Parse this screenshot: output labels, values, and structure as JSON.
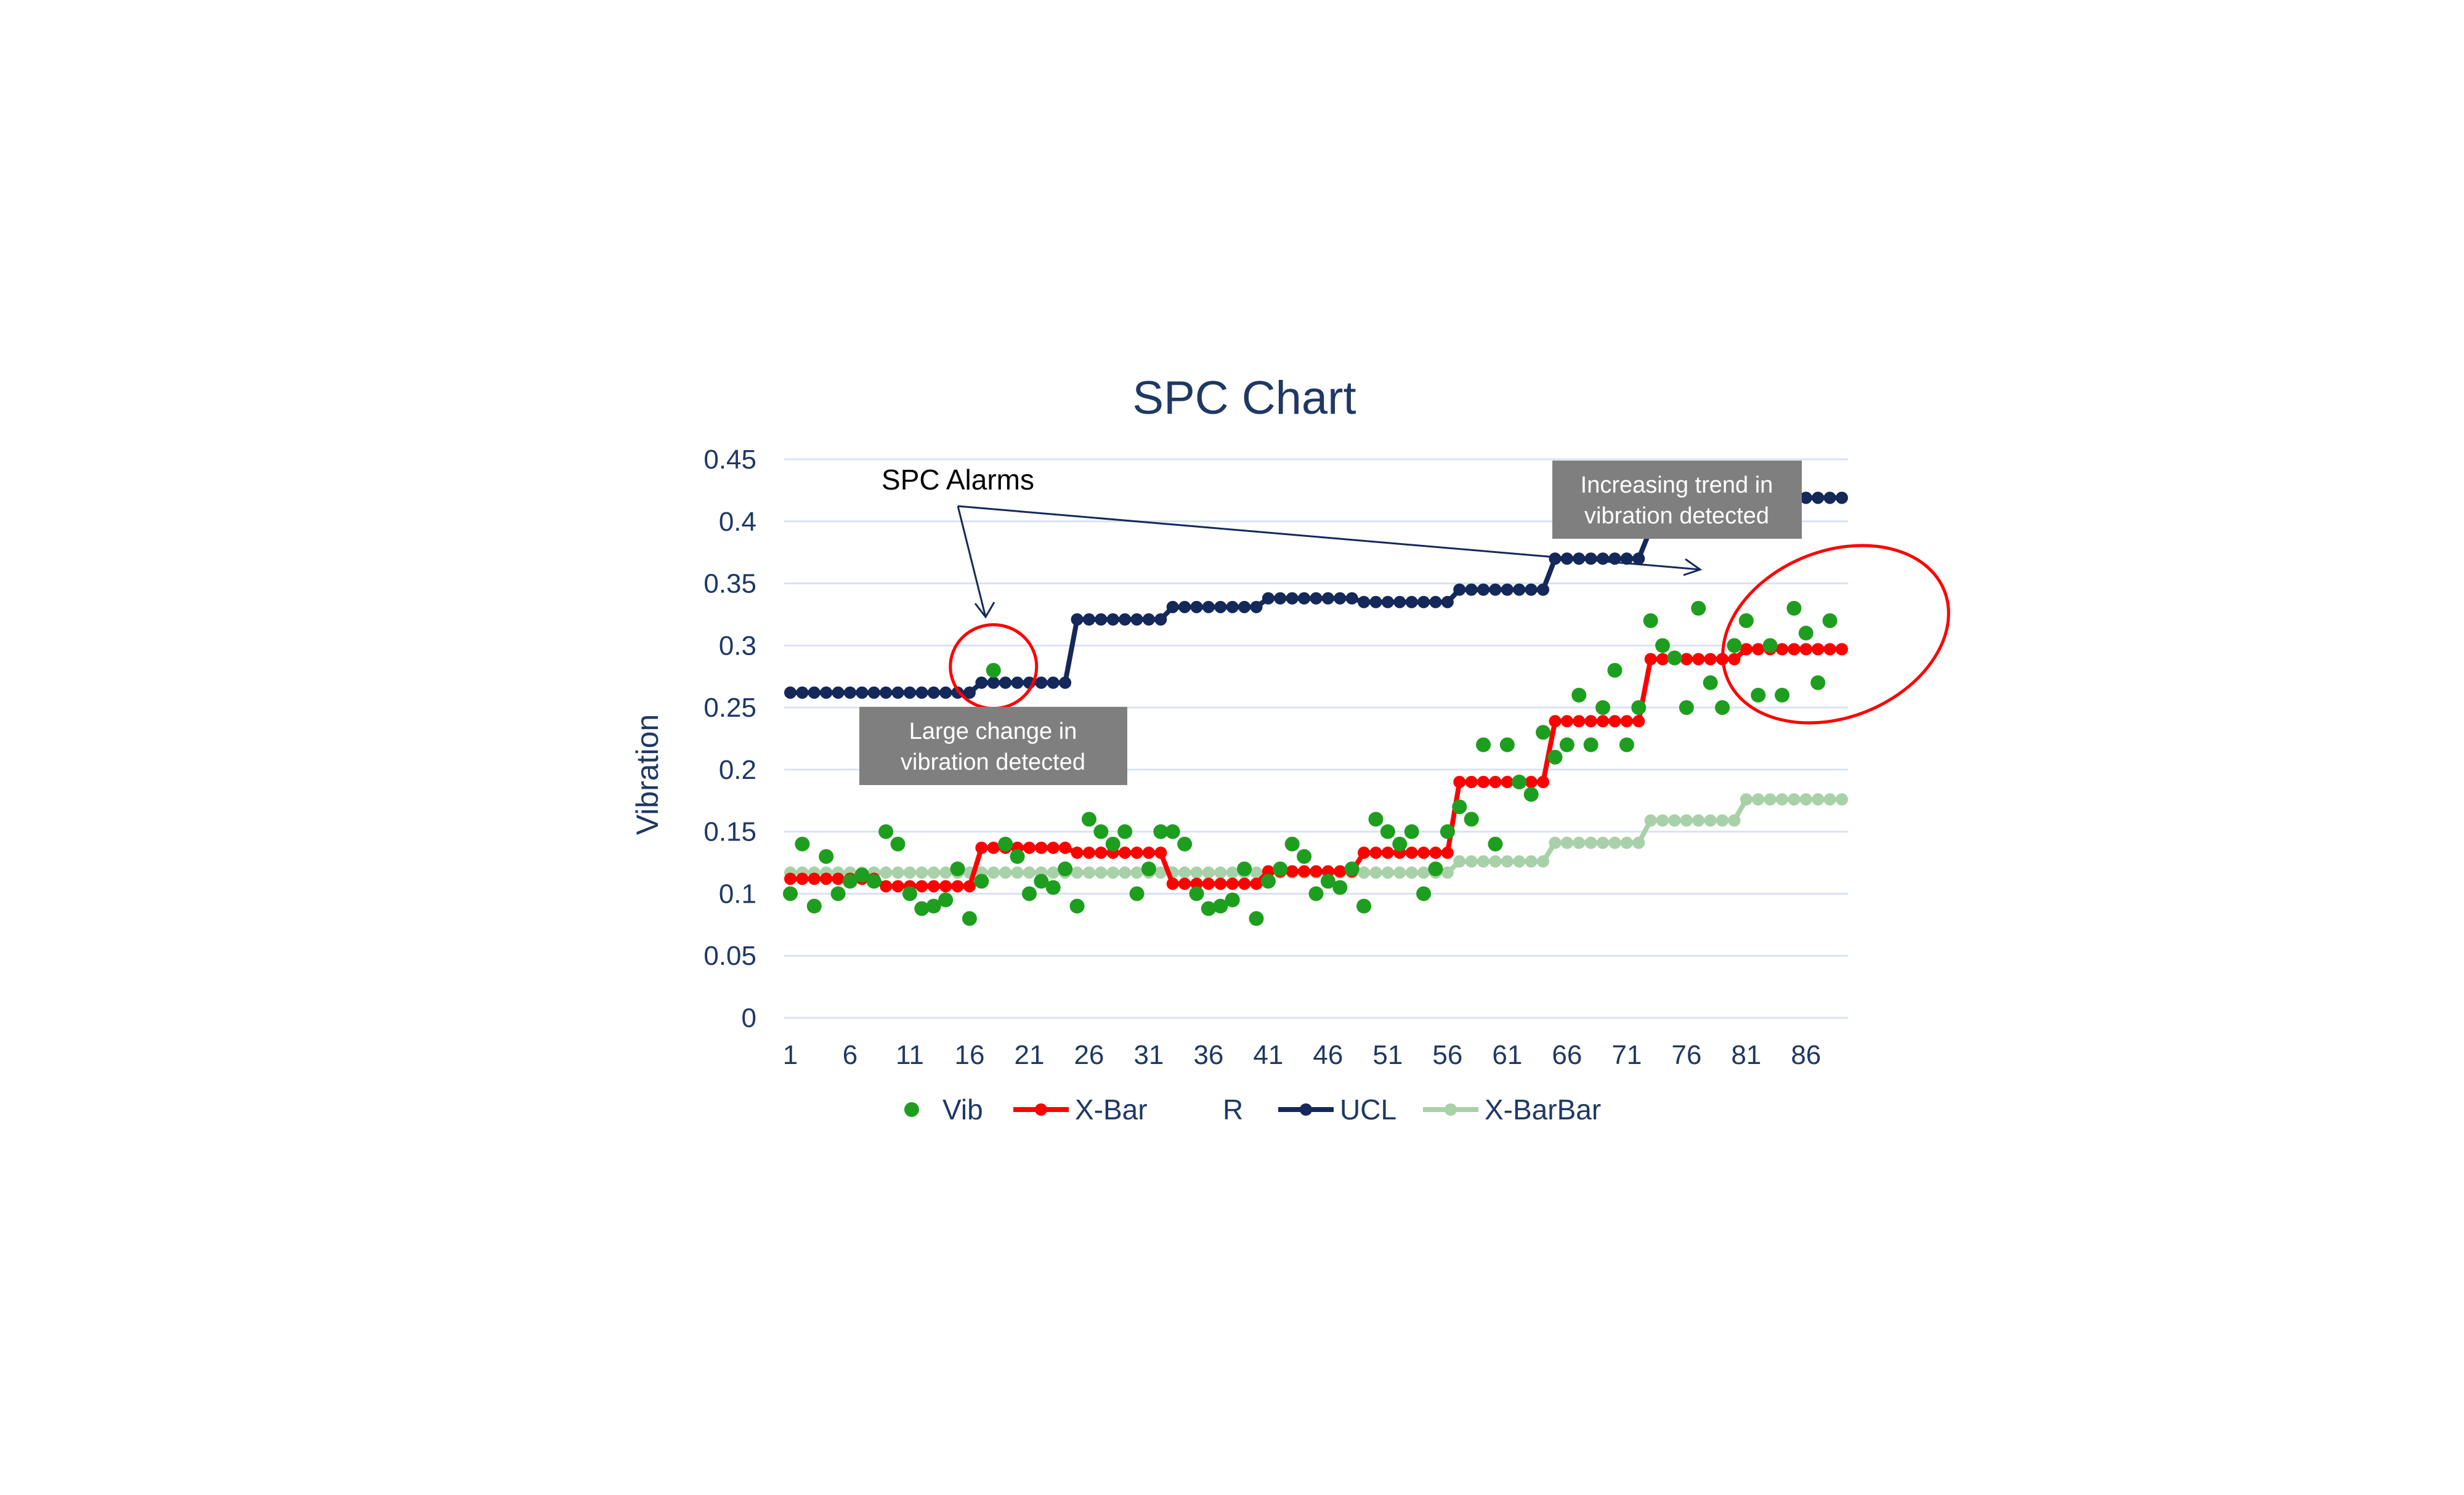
{
  "chart_data": {
    "type": "line",
    "title": "SPC Chart",
    "ylabel": "Vibration",
    "xlabel": "",
    "ylim": [
      0,
      0.45
    ],
    "yticks": [
      "0",
      "0.05",
      "0.1",
      "0.15",
      "0.2",
      "0.25",
      "0.3",
      "0.35",
      "0.4",
      "0.45"
    ],
    "x_tick_labels": [
      "1",
      "6",
      "11",
      "16",
      "21",
      "26",
      "31",
      "36",
      "41",
      "46",
      "51",
      "56",
      "61",
      "66",
      "71",
      "76",
      "81",
      "86"
    ],
    "x_range": [
      1,
      89
    ],
    "grid": "horizontal",
    "legend_position": "bottom",
    "colors": {
      "vib": "#1e9e1e",
      "xbar": "#ff0000",
      "ucl": "#14285a",
      "xbarbar": "#a9d1a9",
      "grid": "#d9e2f3",
      "annotation": "#ff0000",
      "note_box": "#7f7f7f"
    },
    "series": [
      {
        "name": "Vib",
        "style": "markers",
        "values": [
          0.1,
          0.14,
          0.09,
          0.13,
          0.1,
          0.11,
          0.115,
          0.11,
          0.15,
          0.14,
          0.1,
          0.088,
          0.09,
          0.095,
          0.12,
          0.08,
          0.11,
          0.28,
          0.14,
          0.13,
          0.1,
          0.11,
          0.105,
          0.12,
          0.09,
          0.16,
          0.15,
          0.14,
          0.15,
          0.1,
          0.12,
          0.15,
          0.15,
          0.14,
          0.1,
          0.088,
          0.09,
          0.095,
          0.12,
          0.08,
          0.11,
          0.12,
          0.14,
          0.13,
          0.1,
          0.11,
          0.105,
          0.12,
          0.09,
          0.16,
          0.15,
          0.14,
          0.15,
          0.1,
          0.12,
          0.15,
          0.17,
          0.16,
          0.22,
          0.14,
          0.22,
          0.19,
          0.18,
          0.23,
          0.21,
          0.22,
          0.26,
          0.22,
          0.25,
          0.28,
          0.22,
          0.25,
          0.32,
          0.3,
          0.29,
          0.25,
          0.33,
          0.27,
          0.25,
          0.3,
          0.32,
          0.26,
          0.3,
          0.26,
          0.33,
          0.31,
          0.27,
          0.32
        ]
      },
      {
        "name": "X-Bar",
        "style": "line-markers",
        "steps": [
          {
            "from": 1,
            "to": 8,
            "value": 0.112
          },
          {
            "from": 9,
            "to": 16,
            "value": 0.106
          },
          {
            "from": 17,
            "to": 24,
            "value": 0.137
          },
          {
            "from": 25,
            "to": 32,
            "value": 0.133
          },
          {
            "from": 33,
            "to": 40,
            "value": 0.108
          },
          {
            "from": 41,
            "to": 48,
            "value": 0.118
          },
          {
            "from": 49,
            "to": 56,
            "value": 0.133
          },
          {
            "from": 57,
            "to": 64,
            "value": 0.19
          },
          {
            "from": 65,
            "to": 72,
            "value": 0.239
          },
          {
            "from": 73,
            "to": 80,
            "value": 0.289
          },
          {
            "from": 81,
            "to": 89,
            "value": 0.297
          }
        ]
      },
      {
        "name": "R",
        "style": "none",
        "values": []
      },
      {
        "name": "UCL",
        "style": "line-markers",
        "steps": [
          {
            "from": 1,
            "to": 16,
            "value": 0.262
          },
          {
            "from": 17,
            "to": 24,
            "value": 0.27
          },
          {
            "from": 25,
            "to": 32,
            "value": 0.321
          },
          {
            "from": 33,
            "to": 40,
            "value": 0.331
          },
          {
            "from": 41,
            "to": 48,
            "value": 0.338
          },
          {
            "from": 49,
            "to": 56,
            "value": 0.335
          },
          {
            "from": 57,
            "to": 64,
            "value": 0.345
          },
          {
            "from": 65,
            "to": 72,
            "value": 0.37
          },
          {
            "from": 73,
            "to": 80,
            "value": 0.394
          },
          {
            "from": 81,
            "to": 89,
            "value": 0.419
          }
        ]
      },
      {
        "name": "X-BarBar",
        "style": "line-markers",
        "steps": [
          {
            "from": 1,
            "to": 56,
            "value": 0.117
          },
          {
            "from": 57,
            "to": 64,
            "value": 0.126
          },
          {
            "from": 65,
            "to": 72,
            "value": 0.141
          },
          {
            "from": 73,
            "to": 80,
            "value": 0.159
          },
          {
            "from": 81,
            "to": 89,
            "value": 0.176
          }
        ]
      }
    ],
    "annotations": {
      "alarm_label": "SPC Alarms",
      "note_left": [
        "Large change in",
        "vibration detected"
      ],
      "note_right": [
        "Increasing trend in",
        "vibration detected"
      ]
    }
  }
}
